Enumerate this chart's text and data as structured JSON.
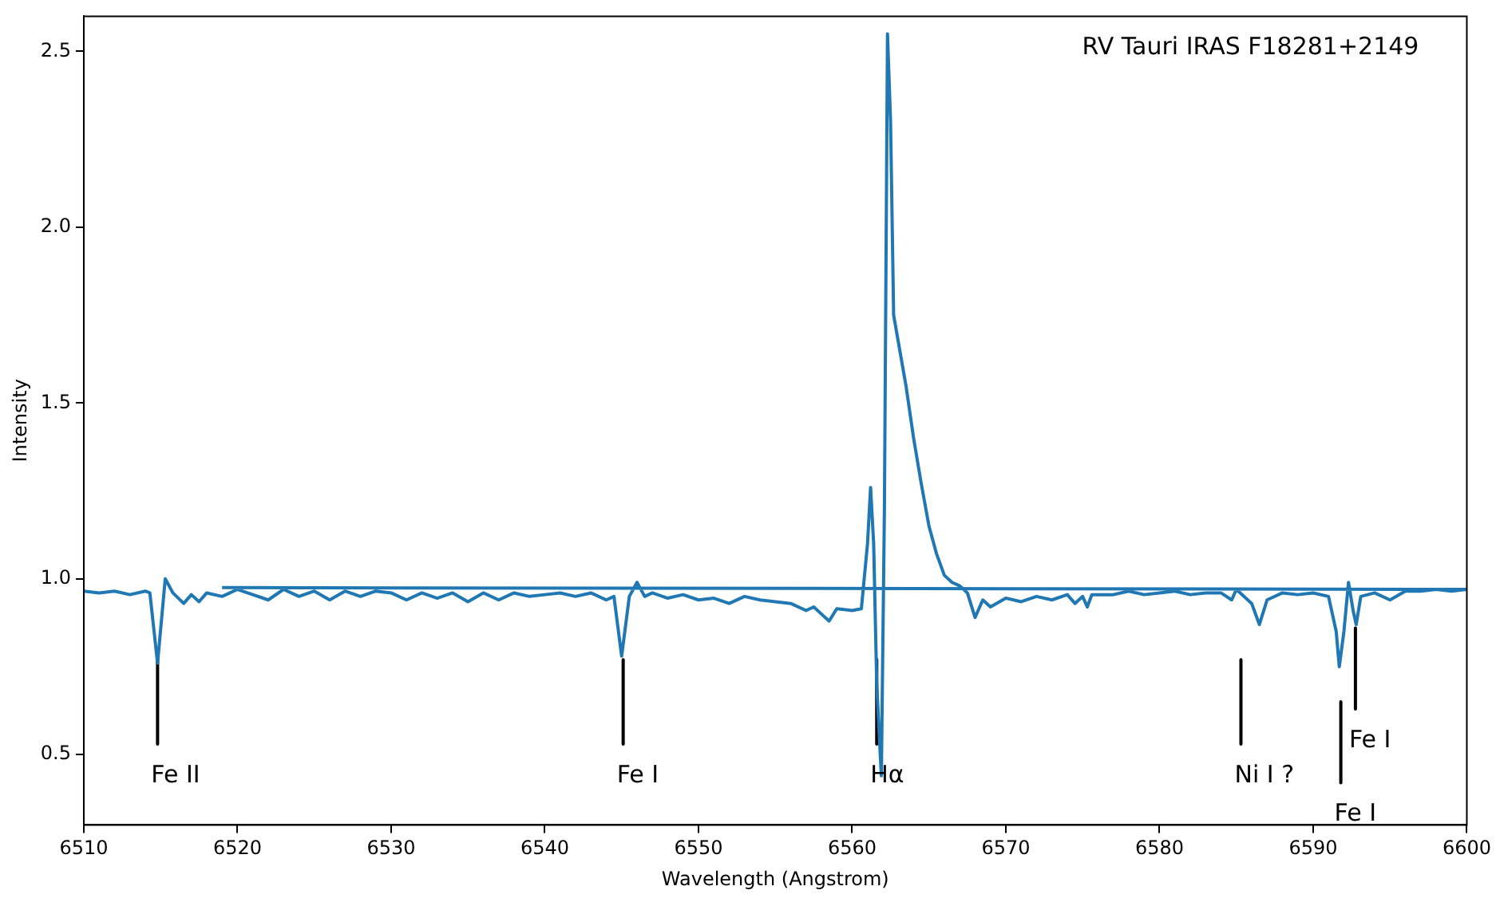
{
  "chart_data": {
    "type": "line",
    "xlabel": "Wavelength (Angstrom)",
    "ylabel": "Intensity",
    "xlim": [
      6510,
      6600
    ],
    "xticks": [
      6510,
      6520,
      6530,
      6540,
      6550,
      6560,
      6570,
      6580,
      6590,
      6600
    ],
    "ylim": [
      0.3,
      2.6
    ],
    "yticks": [
      {
        "value": 0.5,
        "label": "0.5"
      },
      {
        "value": 1.0,
        "label": "1.0"
      },
      {
        "value": 1.5,
        "label": "1.5"
      },
      {
        "value": 2.0,
        "label": "2.0"
      },
      {
        "value": 2.5,
        "label": "2.5"
      }
    ],
    "grid": false,
    "legend": false,
    "marker": "none",
    "line_style": "solid",
    "series": [
      {
        "color": "#1f77b4",
        "x": [
          6510,
          6511,
          6512,
          6513,
          6514,
          6514.3,
          6514.8,
          6515.3,
          6515.8,
          6516.5,
          6517,
          6517.5,
          6518,
          6519,
          6520,
          6521,
          6522,
          6523,
          6524,
          6525,
          6526,
          6527,
          6528,
          6529,
          6530,
          6531,
          6532,
          6533,
          6534,
          6535,
          6536,
          6537,
          6538,
          6539,
          6540,
          6541,
          6542,
          6543,
          6544,
          6544.5,
          6545,
          6545.5,
          6546,
          6546.5,
          6547,
          6548,
          6549,
          6550,
          6551,
          6552,
          6553,
          6554,
          6555,
          6556,
          6557,
          6557.5,
          6558,
          6558.5,
          6559,
          6560,
          6560.6,
          6561,
          6561.2,
          6561.4,
          6561.6,
          6561.9,
          6562.1,
          6562.3,
          6562.5,
          6562.7,
          6563.5,
          6564,
          6564.5,
          6565,
          6565.5,
          6566,
          6566.5,
          6567,
          6567.5,
          6568,
          6568.5,
          6569,
          6570,
          6571,
          6572,
          6573,
          6574,
          6574.5,
          6575,
          6575.3,
          6575.6,
          6577,
          6578,
          6579,
          6580,
          6581,
          6582,
          6583,
          6584,
          6584.7,
          6585,
          6586,
          6586.5,
          6587,
          6588,
          6589,
          6590,
          6591,
          6591.5,
          6591.7,
          6592,
          6592.3,
          6592.6,
          6592.8,
          6593.1,
          6594,
          6595,
          6596,
          6597,
          6598,
          6599,
          6600,
          6519
        ],
        "values": [
          0.965,
          0.96,
          0.965,
          0.955,
          0.965,
          0.96,
          0.76,
          1.0,
          0.96,
          0.93,
          0.955,
          0.935,
          0.96,
          0.95,
          0.97,
          0.955,
          0.94,
          0.97,
          0.95,
          0.965,
          0.94,
          0.965,
          0.95,
          0.965,
          0.96,
          0.94,
          0.96,
          0.945,
          0.96,
          0.935,
          0.96,
          0.94,
          0.96,
          0.95,
          0.955,
          0.96,
          0.95,
          0.96,
          0.94,
          0.95,
          0.78,
          0.95,
          0.99,
          0.95,
          0.96,
          0.945,
          0.955,
          0.94,
          0.945,
          0.93,
          0.95,
          0.94,
          0.935,
          0.93,
          0.91,
          0.92,
          0.9,
          0.88,
          0.915,
          0.91,
          0.915,
          1.1,
          1.26,
          1.1,
          0.7,
          0.44,
          1.2,
          2.55,
          2.3,
          1.75,
          1.55,
          1.4,
          1.27,
          1.15,
          1.07,
          1.01,
          0.99,
          0.98,
          0.96,
          0.89,
          0.94,
          0.92,
          0.945,
          0.935,
          0.95,
          0.94,
          0.955,
          0.93,
          0.95,
          0.92,
          0.955,
          0.955,
          0.965,
          0.955,
          0.96,
          0.965,
          0.955,
          0.96,
          0.96,
          0.94,
          0.97,
          0.93,
          0.87,
          0.94,
          0.96,
          0.955,
          0.96,
          0.95,
          0.85,
          0.75,
          0.85,
          0.99,
          0.91,
          0.87,
          0.95,
          0.96,
          0.94,
          0.965,
          0.965,
          0.97,
          0.965,
          0.97,
          0.975
        ]
      },
      {
        "color": "#000000",
        "x": [
          6514.8,
          6514.8
        ],
        "values": [
          0.77,
          0.53
        ]
      },
      {
        "color": "#000000",
        "x": [
          6545.1,
          6545.1
        ],
        "values": [
          0.77,
          0.53
        ]
      },
      {
        "color": "#000000",
        "x": [
          6561.6,
          6561.6
        ],
        "values": [
          0.77,
          0.53
        ]
      },
      {
        "color": "#000000",
        "x": [
          6585.3,
          6585.3
        ],
        "values": [
          0.77,
          0.53
        ]
      },
      {
        "color": "#000000",
        "x": [
          6591.8,
          6591.8
        ],
        "values": [
          0.65,
          0.42
        ]
      },
      {
        "color": "#000000",
        "x": [
          6592.75,
          6592.75
        ],
        "values": [
          0.86,
          0.63
        ]
      }
    ],
    "annotations": [
      "RV Tauri IRAS F18281+2149",
      {
        "text": "Fe II",
        "x": 6514.8,
        "y": 0.53
      },
      {
        "text": "Fe I",
        "x": 6545.1,
        "y": 0.53
      },
      {
        "text": "Hα",
        "x": 6561.6,
        "y": 0.53
      },
      {
        "text": "Ni I ?",
        "x": 6585.3,
        "y": 0.53
      },
      {
        "text": "Fe I",
        "x": 6592.75,
        "y": 0.63
      },
      {
        "text": "Fe I",
        "x": 6591.8,
        "y": 0.42
      }
    ]
  }
}
